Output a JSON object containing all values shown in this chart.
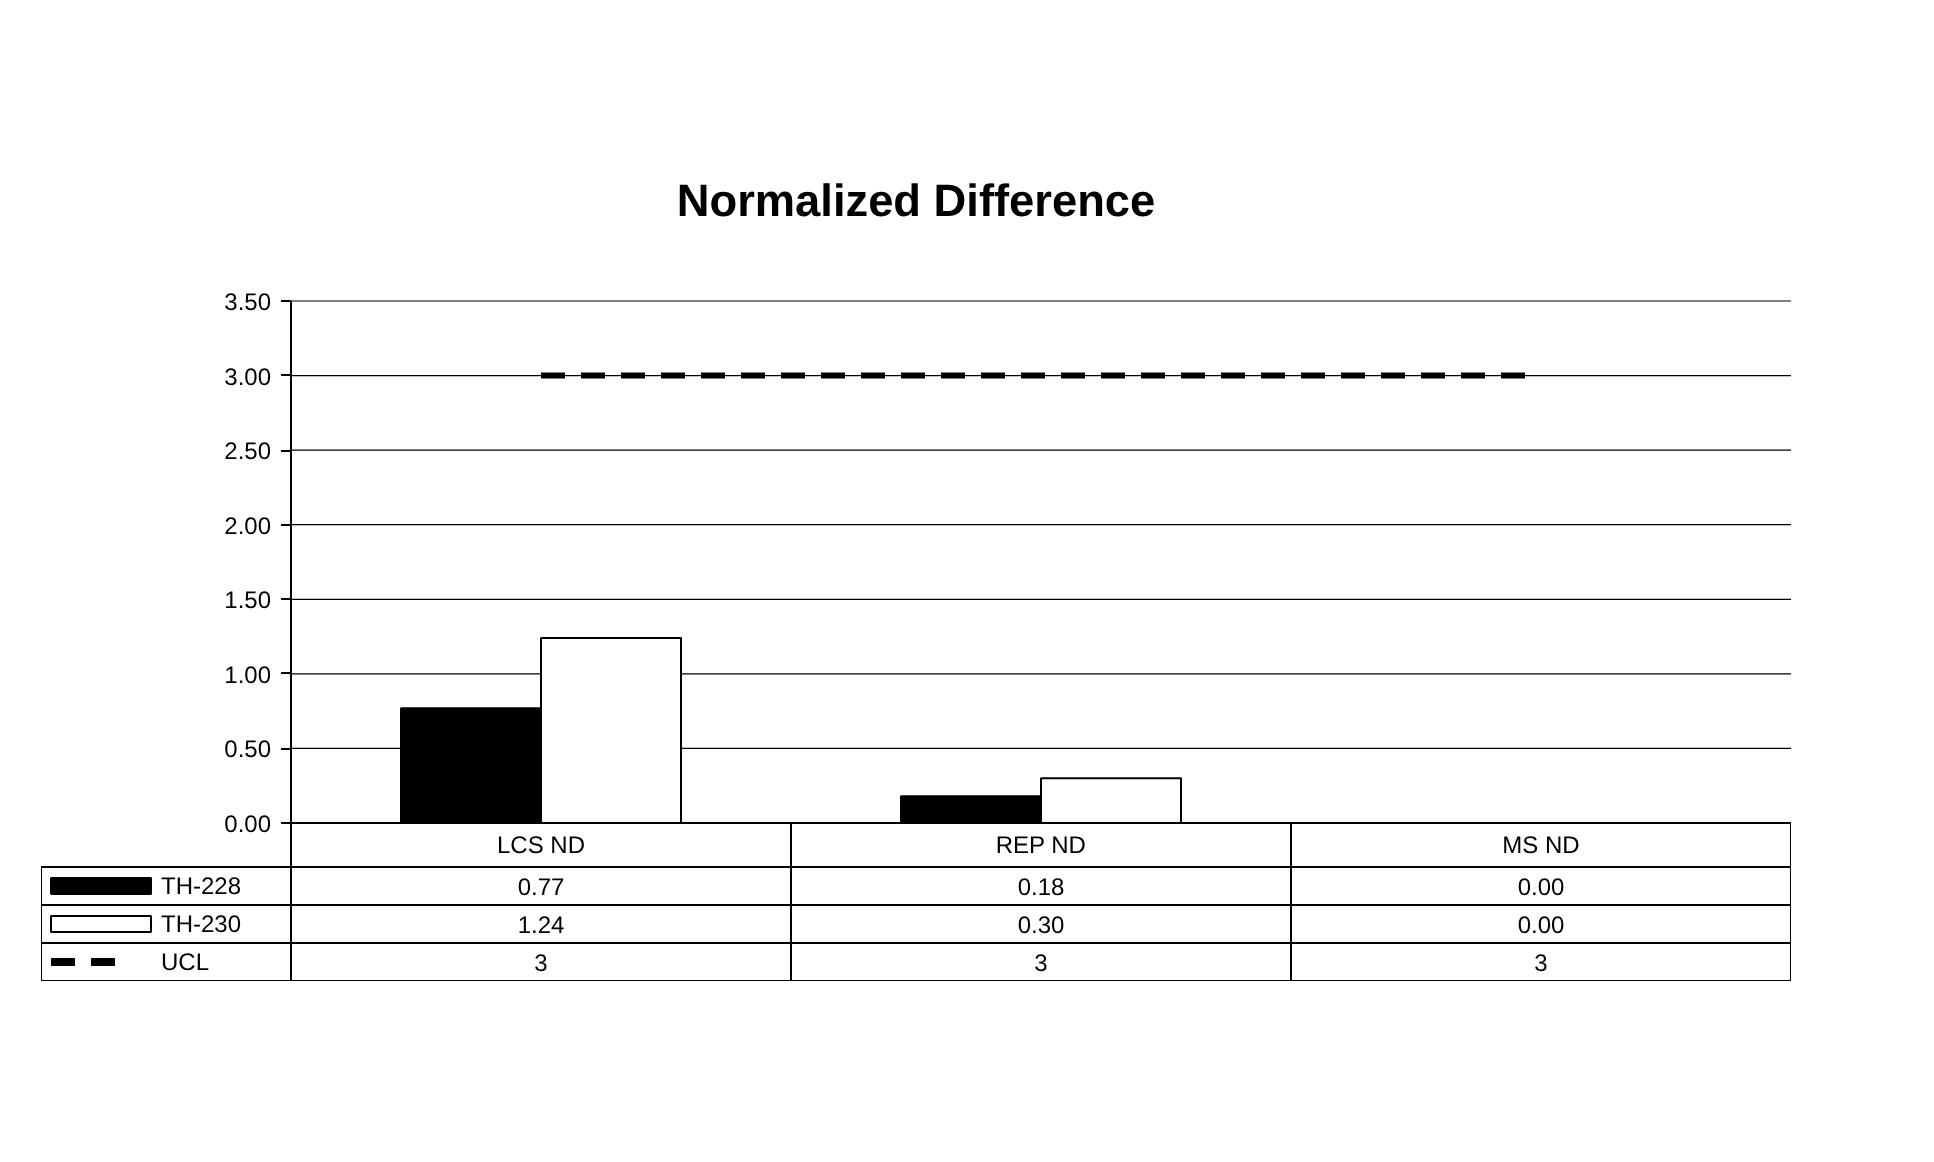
{
  "chart_data": {
    "type": "bar",
    "title": "Normalized Difference",
    "categories": [
      "LCS ND",
      "REP ND",
      "MS ND"
    ],
    "series": [
      {
        "name": "TH-228",
        "color": "#000000",
        "values": [
          0.77,
          0.18,
          0.0
        ],
        "value_labels": [
          "0.77",
          "0.18",
          "0.00"
        ]
      },
      {
        "name": "TH-230",
        "color": "#ffffff",
        "values": [
          1.24,
          0.3,
          0.0
        ],
        "value_labels": [
          "1.24",
          "0.30",
          "0.00"
        ]
      },
      {
        "name": "UCL",
        "type": "line",
        "line_style": "dashed",
        "color": "#000000",
        "values": [
          3,
          3,
          3
        ],
        "value_labels": [
          "3",
          "3",
          "3"
        ]
      }
    ],
    "ylim": [
      0,
      3.5
    ],
    "yticks": [
      {
        "value": 0,
        "label": "0.00"
      },
      {
        "value": 0.5,
        "label": "0.50"
      },
      {
        "value": 1,
        "label": "1.00"
      },
      {
        "value": 1.5,
        "label": "1.50"
      },
      {
        "value": 2,
        "label": "2.00"
      },
      {
        "value": 2.5,
        "label": "2.50"
      },
      {
        "value": 3,
        "label": "3.00"
      },
      {
        "value": 3.5,
        "label": "3.50"
      }
    ],
    "grid": "y",
    "legend": "bottom left"
  }
}
